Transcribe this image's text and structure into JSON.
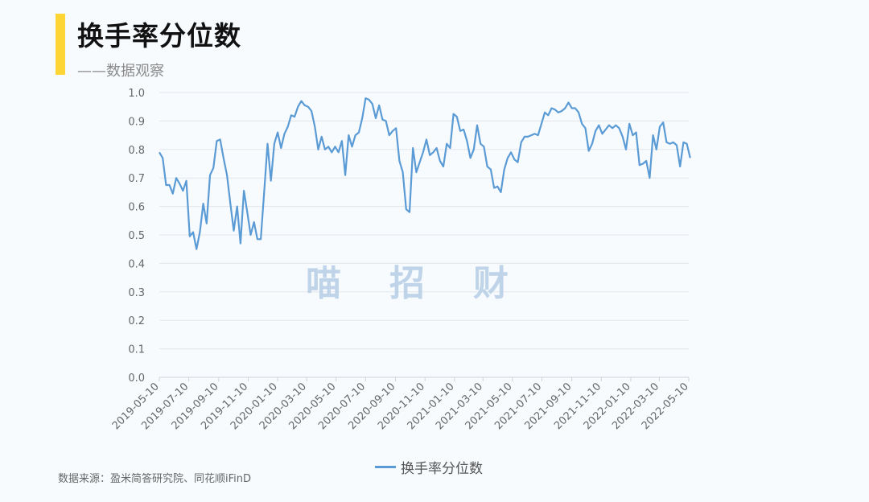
{
  "header": {
    "title": "换手率分位数",
    "subtitle": "——数据观察"
  },
  "watermark": "喵招财",
  "source": "数据来源：盈米简答研究院、同花顺iFinD",
  "colors": {
    "line": "#5b9bd5",
    "accent_bar": "#fdd535",
    "grid": "#e3e6ea"
  },
  "chart_data": {
    "type": "line",
    "title": "",
    "xlabel": "",
    "ylabel": "",
    "ylim": [
      0,
      1.0
    ],
    "yticks": [
      "0.0",
      "0.1",
      "0.2",
      "0.3",
      "0.4",
      "0.5",
      "0.6",
      "0.7",
      "0.8",
      "0.9",
      "1.0"
    ],
    "xlim": [
      "2019-05-10",
      "2022-05-10"
    ],
    "xticks": [
      "2019-05-10",
      "2019-07-10",
      "2019-09-10",
      "2019-11-10",
      "2020-01-10",
      "2020-03-10",
      "2020-05-10",
      "2020-07-10",
      "2020-09-10",
      "2020-11-10",
      "2021-01-10",
      "2021-03-10",
      "2021-05-10",
      "2021-07-10",
      "2021-09-10",
      "2021-11-10",
      "2022-01-10",
      "2022-03-10",
      "2022-05-10"
    ],
    "grid": true,
    "legend": "bottom",
    "x_start": "2019-05-10",
    "x_interval": "weekly",
    "series": [
      {
        "name": "换手率分位数",
        "values": [
          0.79,
          0.77,
          0.675,
          0.675,
          0.645,
          0.7,
          0.68,
          0.655,
          0.69,
          0.495,
          0.51,
          0.45,
          0.51,
          0.61,
          0.54,
          0.71,
          0.735,
          0.83,
          0.835,
          0.77,
          0.71,
          0.61,
          0.515,
          0.6,
          0.47,
          0.655,
          0.58,
          0.5,
          0.545,
          0.485,
          0.485,
          0.65,
          0.82,
          0.69,
          0.82,
          0.86,
          0.805,
          0.855,
          0.88,
          0.92,
          0.915,
          0.95,
          0.97,
          0.955,
          0.95,
          0.935,
          0.88,
          0.8,
          0.845,
          0.8,
          0.81,
          0.79,
          0.81,
          0.79,
          0.83,
          0.71,
          0.85,
          0.81,
          0.85,
          0.86,
          0.91,
          0.98,
          0.975,
          0.96,
          0.91,
          0.955,
          0.905,
          0.9,
          0.85,
          0.865,
          0.875,
          0.76,
          0.72,
          0.59,
          0.58,
          0.805,
          0.72,
          0.755,
          0.79,
          0.835,
          0.78,
          0.79,
          0.805,
          0.76,
          0.74,
          0.82,
          0.805,
          0.925,
          0.915,
          0.865,
          0.87,
          0.83,
          0.77,
          0.8,
          0.885,
          0.82,
          0.81,
          0.74,
          0.73,
          0.665,
          0.67,
          0.65,
          0.73,
          0.77,
          0.79,
          0.765,
          0.755,
          0.825,
          0.845,
          0.845,
          0.85,
          0.855,
          0.85,
          0.89,
          0.93,
          0.92,
          0.945,
          0.94,
          0.93,
          0.935,
          0.945,
          0.965,
          0.945,
          0.945,
          0.93,
          0.89,
          0.875,
          0.795,
          0.82,
          0.865,
          0.885,
          0.855,
          0.87,
          0.885,
          0.875,
          0.885,
          0.875,
          0.845,
          0.8,
          0.89,
          0.85,
          0.86,
          0.745,
          0.75,
          0.76,
          0.7,
          0.85,
          0.8,
          0.88,
          0.895,
          0.825,
          0.82,
          0.825,
          0.815,
          0.74,
          0.825,
          0.82,
          0.77
        ]
      }
    ]
  }
}
